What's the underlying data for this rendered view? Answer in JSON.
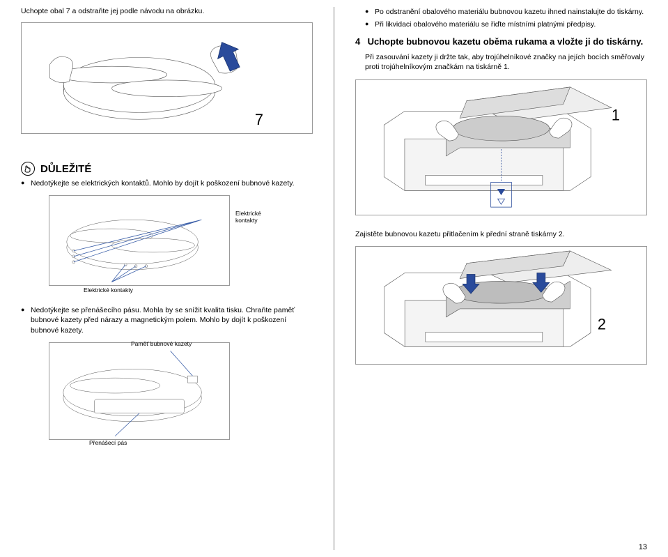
{
  "intro_left": "Uchopte obal 7 a odstraňte jej podle návodu na obrázku.",
  "fig1_number": "7",
  "important_title": "DŮLEŽITÉ",
  "important_bullets": [
    "Nedotýkejte se elektrických kontaktů. Mohlo by dojít k poškození bubnové kazety."
  ],
  "caption_contacts_side": "Elektrické\nkontakty",
  "caption_contacts_bottom": "Elektrické kontakty",
  "left_bullets2": [
    "Nedotýkejte se přenášecího pásu. Mohla by se snížit kvalita tisku. Chraňte paměť bubnové kazety před nárazy a magnetickým polem. Mohlo by dojít k poškození bubnové kazety."
  ],
  "caption_memory": "Paměť bubnové kazety",
  "caption_belt": "Přenášecí pás",
  "right_bullets1": [
    "Po odstranění obalového materiálu bubnovou kazetu ihned nainstalujte do tiskárny.",
    "Při likvidaci obalového materiálu se řiďte místními platnými předpisy."
  ],
  "step4_num": "4",
  "step4_heading": "Uchopte bubnovou kazetu oběma rukama a vložte ji do tiskárny.",
  "step4_body": "Při zasouvání kazety ji držte tak, aby trojúhelníkové značky na jejích bocích směřovaly proti trojúhelníkovým značkám na tiskárně 1.",
  "fig_right1_num": "1",
  "right_body2": "Zajistěte bubnovou kazetu přitlačením k přední straně tiskárny 2.",
  "fig_right2_num": "2",
  "page_number": "13",
  "colors": {
    "text": "#000000",
    "border": "#999999",
    "leader": "#3b5fa8",
    "arrow_fill": "#2a4b9b",
    "bg": "#ffffff"
  }
}
